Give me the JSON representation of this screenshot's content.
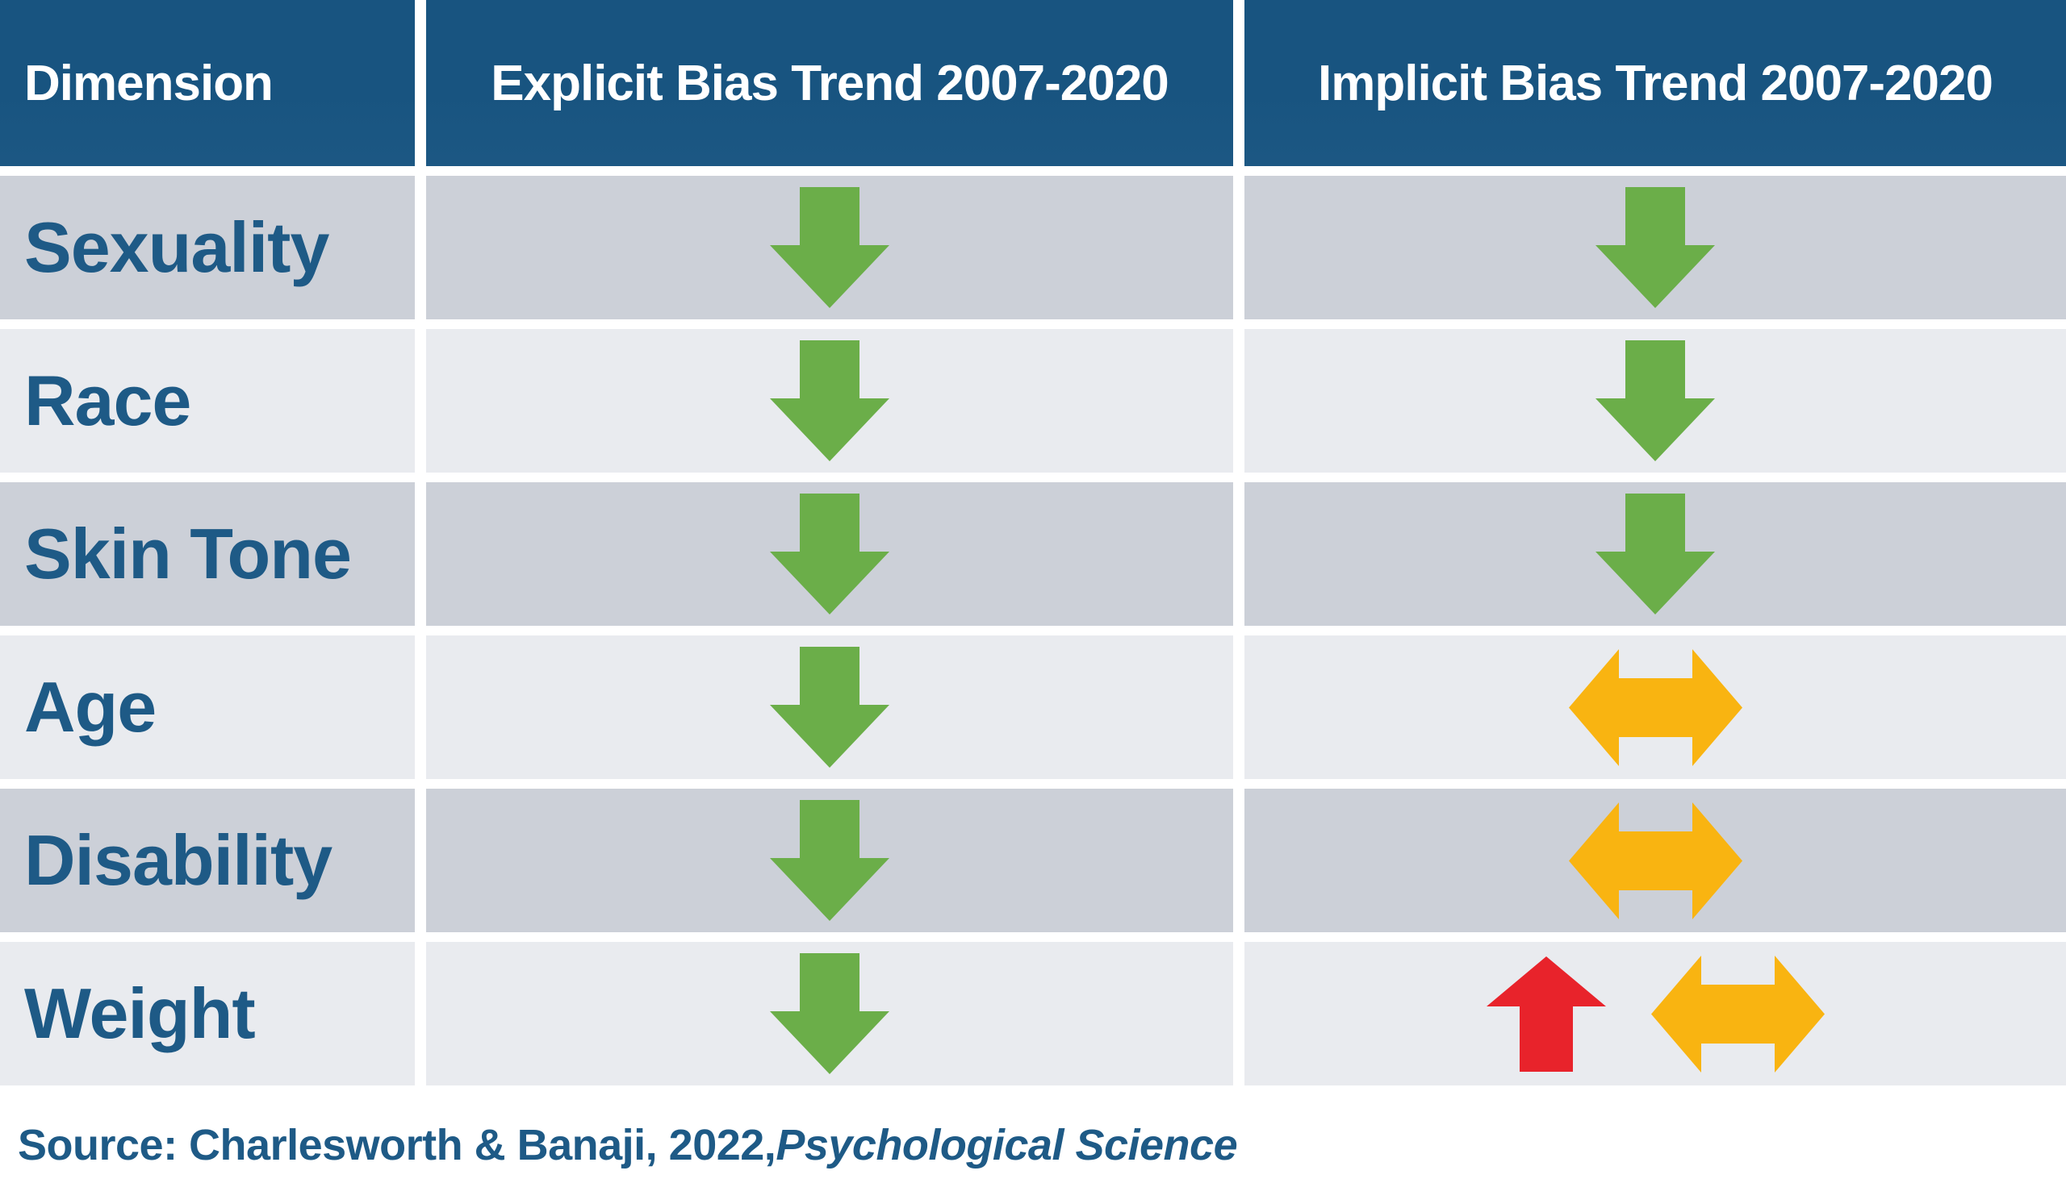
{
  "colors": {
    "header_bg": "#185480",
    "header_text": "#FFFFFF",
    "row_dark_bg": "#CCD0D8",
    "row_light_bg": "#E9EBEF",
    "label_text": "#1E5A86",
    "source_text": "#1E5A86",
    "arrow_decreasing": "#6BAE49",
    "arrow_stable": "#F9B411",
    "arrow_increasing": "#E8232B"
  },
  "header": {
    "columns": [
      {
        "label": "Dimension"
      },
      {
        "label": "Explicit Bias Trend 2007-2020"
      },
      {
        "label": "Implicit Bias Trend 2007-2020"
      }
    ]
  },
  "rows": [
    {
      "dimension": "Sexuality",
      "explicit": [
        "decreasing"
      ],
      "implicit": [
        "decreasing"
      ]
    },
    {
      "dimension": "Race",
      "explicit": [
        "decreasing"
      ],
      "implicit": [
        "decreasing"
      ]
    },
    {
      "dimension": "Skin Tone",
      "explicit": [
        "decreasing"
      ],
      "implicit": [
        "decreasing"
      ]
    },
    {
      "dimension": "Age",
      "explicit": [
        "decreasing"
      ],
      "implicit": [
        "stable"
      ]
    },
    {
      "dimension": "Disability",
      "explicit": [
        "decreasing"
      ],
      "implicit": [
        "stable"
      ]
    },
    {
      "dimension": "Weight",
      "explicit": [
        "decreasing"
      ],
      "implicit": [
        "increasing",
        "stable"
      ]
    }
  ],
  "source": {
    "prefix": "Source: Charlesworth & Banaji, 2022, ",
    "journal": "Psychological Science"
  },
  "chart_data": {
    "type": "table",
    "columns": [
      "Dimension",
      "Explicit Bias Trend 2007-2020",
      "Implicit Bias Trend 2007-2020"
    ],
    "rows": [
      [
        "Sexuality",
        "decreasing",
        "decreasing"
      ],
      [
        "Race",
        "decreasing",
        "decreasing"
      ],
      [
        "Skin Tone",
        "decreasing",
        "decreasing"
      ],
      [
        "Age",
        "decreasing",
        "stable"
      ],
      [
        "Disability",
        "decreasing",
        "stable"
      ],
      [
        "Weight",
        "decreasing",
        "increasing & stable"
      ]
    ],
    "legend": {
      "green_down_arrow": "decreasing",
      "gold_double_arrow": "stable",
      "red_up_arrow": "increasing"
    },
    "source": "Charlesworth & Banaji, 2022, Psychological Science"
  }
}
